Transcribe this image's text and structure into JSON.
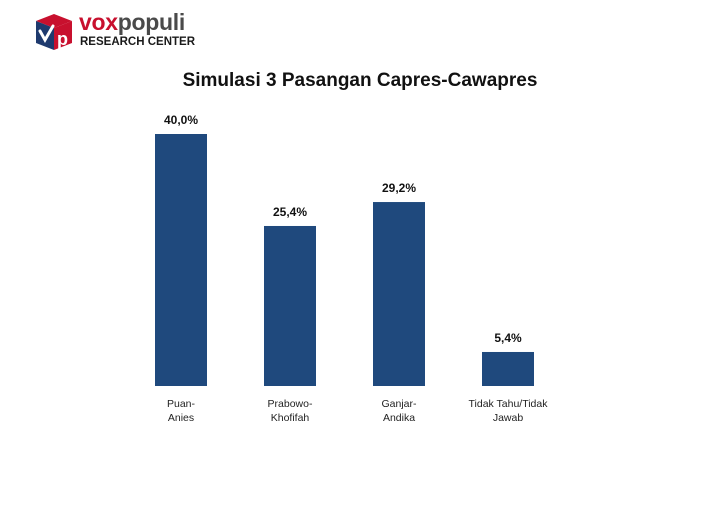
{
  "brand": {
    "name_part1": "vox",
    "name_part2": "populi",
    "tagline": "RESEARCH CENTER",
    "logo_letter": "p",
    "colors": {
      "red": "#c8102e",
      "navy": "#1e3a6e",
      "gray": "#4a4a4a"
    }
  },
  "chart_data": {
    "type": "bar",
    "title": "Simulasi 3 Pasangan Capres-Cawapres",
    "xlabel": "",
    "ylabel": "",
    "categories": [
      [
        "Puan-",
        "Anies"
      ],
      [
        "Prabowo-",
        "Khofifah"
      ],
      [
        "Ganjar-",
        "Andika"
      ],
      [
        "Tidak Tahu/Tidak",
        "Jawab"
      ]
    ],
    "values": [
      40.0,
      25.4,
      29.2,
      5.4
    ],
    "value_labels": [
      "40,0%",
      "25,4%",
      "29,2%",
      "5,4%"
    ],
    "unit": "%",
    "ylim": [
      0,
      40
    ],
    "grid": false,
    "bar_color": "#1f497d"
  }
}
